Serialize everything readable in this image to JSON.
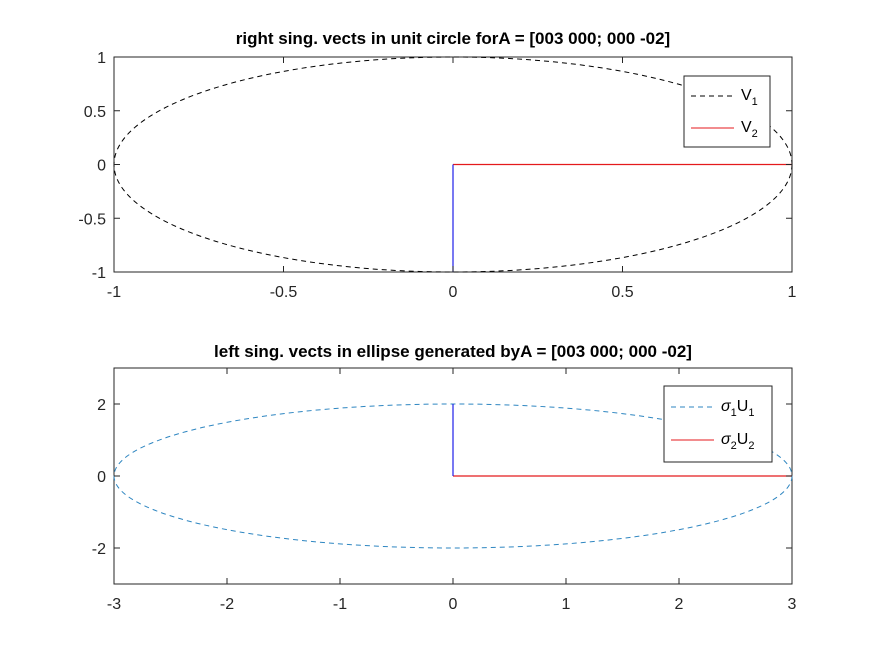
{
  "chart_data": [
    {
      "type": "line",
      "title": "right sing. vects in unit circle forA = [003 000; 000 -02]",
      "xlim": [
        -1,
        1
      ],
      "ylim": [
        -1,
        1
      ],
      "xticks": [
        -1,
        -0.5,
        0,
        0.5,
        1
      ],
      "yticks": [
        -1,
        -0.5,
        0,
        0.5,
        1
      ],
      "xtick_labels": [
        "-1",
        "-0.5",
        "0",
        "0.5",
        "1"
      ],
      "ytick_labels": [
        "-1",
        "-0.5",
        "0",
        "0.5",
        "1"
      ],
      "grid": false,
      "legend_position": "top-right",
      "ellipse": {
        "center": [
          0,
          0
        ],
        "rx": 1,
        "ry": 1,
        "color": "#000000",
        "dash": "dashed"
      },
      "vectors": [
        {
          "from": [
            0,
            0
          ],
          "to": [
            1,
            0
          ],
          "color": "#e41a1c"
        },
        {
          "from": [
            0,
            0
          ],
          "to": [
            0,
            -1
          ],
          "color": "#1f1fe8"
        }
      ],
      "legend": [
        {
          "base": "V",
          "sub": "1",
          "style": "dashed",
          "color": "#000000"
        },
        {
          "base": "V",
          "sub": "2",
          "style": "solid",
          "color": "#e41a1c"
        }
      ]
    },
    {
      "type": "line",
      "title": "left sing. vects in ellipse generated byA = [003 000; 000 -02]",
      "xlim": [
        -3,
        3
      ],
      "ylim": [
        -3,
        3
      ],
      "xticks": [
        -3,
        -2,
        -1,
        0,
        1,
        2,
        3
      ],
      "yticks": [
        -2,
        0,
        2
      ],
      "xtick_labels": [
        "-3",
        "-2",
        "-1",
        "0",
        "1",
        "2",
        "3"
      ],
      "ytick_labels": [
        "-2",
        "0",
        "2"
      ],
      "grid": false,
      "legend_position": "top-right",
      "ellipse": {
        "center": [
          0,
          0
        ],
        "rx": 3,
        "ry": 2,
        "color": "#2e86c1",
        "dash": "dashed"
      },
      "vectors": [
        {
          "from": [
            0,
            0
          ],
          "to": [
            3,
            0
          ],
          "color": "#e41a1c"
        },
        {
          "from": [
            0,
            0
          ],
          "to": [
            0,
            2
          ],
          "color": "#1f1fe8"
        }
      ],
      "legend": [
        {
          "base": "U",
          "sub": "1",
          "sigma_sub": "1",
          "style": "dashed",
          "color": "#2e86c1"
        },
        {
          "base": "U",
          "sub": "2",
          "sigma_sub": "2",
          "style": "solid",
          "color": "#e41a1c"
        }
      ]
    }
  ]
}
